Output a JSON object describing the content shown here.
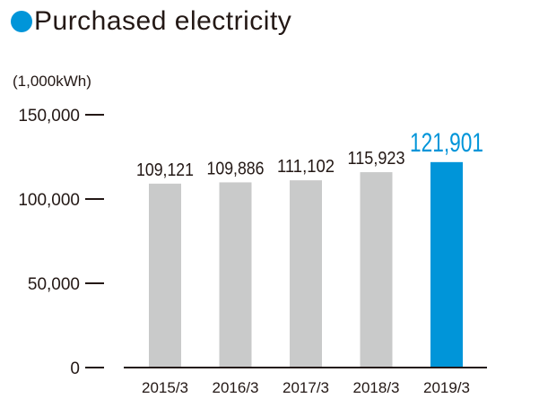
{
  "title": "Purchased electricity",
  "colors": {
    "accent": "#0095d9",
    "bar_default": "#c9caca",
    "text": "#231815",
    "axis": "#231815"
  },
  "chart_data": {
    "type": "bar",
    "title": "Purchased electricity",
    "ylabel": "(1,000kWh)",
    "xlabel": "",
    "categories": [
      "2015/3",
      "2016/3",
      "2017/3",
      "2018/3",
      "2019/3"
    ],
    "values": [
      109121,
      109886,
      111102,
      115923,
      121901
    ],
    "value_labels": [
      "109,121",
      "109,886",
      "111,102",
      "115,923",
      "121,901"
    ],
    "highlight_index": 4,
    "ylim": [
      0,
      150000
    ],
    "yticks": [
      0,
      50000,
      100000,
      150000
    ],
    "ytick_labels": [
      "0",
      "50,000",
      "100,000",
      "150,000"
    ],
    "grid": false,
    "legend": "none"
  }
}
